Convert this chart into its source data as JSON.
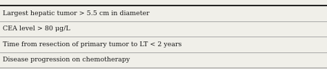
{
  "rows": [
    "Largest hepatic tumor > 5.5 cm in diameter",
    "CEA level > 80 μg/L",
    "Time from resection of primary tumor to LT < 2 years",
    "Disease progression on chemotherapy"
  ],
  "background_color": "#f0efe9",
  "line_color": "#999999",
  "text_color": "#1a1a1a",
  "font_size": 6.8,
  "top_line_color": "#222222",
  "bottom_line_color": "#999999",
  "figwidth": 4.74,
  "figheight": 1.0,
  "dpi": 100
}
